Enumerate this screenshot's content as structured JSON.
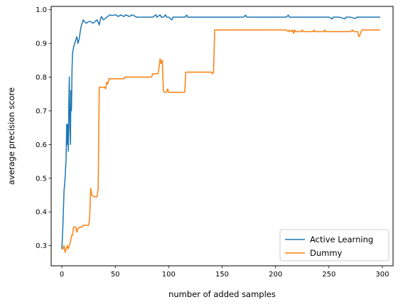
{
  "chart_data": {
    "type": "line",
    "title": "",
    "xlabel": "number of added samples",
    "ylabel": "average precision score",
    "xlim": [
      -10,
      310
    ],
    "ylim": [
      0.24,
      1.01
    ],
    "xticks": [
      0,
      50,
      100,
      150,
      200,
      250,
      300
    ],
    "yticks": [
      0.3,
      0.4,
      0.5,
      0.6,
      0.7,
      0.8,
      0.9,
      1.0
    ],
    "xtick_labels": [
      "0",
      "50",
      "100",
      "150",
      "200",
      "250",
      "300"
    ],
    "ytick_labels": [
      "0.3",
      "0.4",
      "0.5",
      "0.6",
      "0.7",
      "0.8",
      "0.9",
      "1.0"
    ],
    "grid": false,
    "legend_position": "lower-right",
    "series": [
      {
        "name": "Active Learning",
        "color": "#1f77b4",
        "points": [
          [
            0,
            0.29
          ],
          [
            1,
            0.36
          ],
          [
            2,
            0.46
          ],
          [
            3,
            0.5
          ],
          [
            4,
            0.56
          ],
          [
            4.5,
            0.66
          ],
          [
            5,
            0.6
          ],
          [
            5.5,
            0.66
          ],
          [
            6,
            0.58
          ],
          [
            6.5,
            0.72
          ],
          [
            7,
            0.8
          ],
          [
            7.5,
            0.65
          ],
          [
            8,
            0.6
          ],
          [
            8.5,
            0.76
          ],
          [
            9,
            0.7
          ],
          [
            9.5,
            0.82
          ],
          [
            10,
            0.87
          ],
          [
            11,
            0.89
          ],
          [
            12,
            0.9
          ],
          [
            13,
            0.91
          ],
          [
            14,
            0.92
          ],
          [
            15,
            0.9
          ],
          [
            16,
            0.91
          ],
          [
            17,
            0.93
          ],
          [
            18,
            0.95
          ],
          [
            19,
            0.96
          ],
          [
            20,
            0.97
          ],
          [
            21,
            0.965
          ],
          [
            23,
            0.96
          ],
          [
            25,
            0.965
          ],
          [
            27,
            0.965
          ],
          [
            29,
            0.96
          ],
          [
            31,
            0.965
          ],
          [
            33,
            0.97
          ],
          [
            35,
            0.955
          ],
          [
            36,
            0.97
          ],
          [
            37,
            0.98
          ],
          [
            39,
            0.97
          ],
          [
            41,
            0.975
          ],
          [
            43,
            0.98
          ],
          [
            45,
            0.985
          ],
          [
            47,
            0.983
          ],
          [
            50,
            0.985
          ],
          [
            53,
            0.98
          ],
          [
            55,
            0.985
          ],
          [
            58,
            0.98
          ],
          [
            60,
            0.985
          ],
          [
            63,
            0.98
          ],
          [
            66,
            0.985
          ],
          [
            70,
            0.978
          ],
          [
            75,
            0.978
          ],
          [
            80,
            0.978
          ],
          [
            85,
            0.978
          ],
          [
            88,
            0.985
          ],
          [
            89,
            0.978
          ],
          [
            92,
            0.985
          ],
          [
            93,
            0.978
          ],
          [
            95,
            0.978
          ],
          [
            97,
            0.985
          ],
          [
            98,
            0.978
          ],
          [
            100,
            0.978
          ],
          [
            103,
            0.97
          ],
          [
            104,
            0.978
          ],
          [
            110,
            0.978
          ],
          [
            115,
            0.978
          ],
          [
            117,
            0.984
          ],
          [
            118,
            0.978
          ],
          [
            125,
            0.978
          ],
          [
            130,
            0.978
          ],
          [
            140,
            0.978
          ],
          [
            150,
            0.978
          ],
          [
            160,
            0.978
          ],
          [
            170,
            0.978
          ],
          [
            172,
            0.984
          ],
          [
            173,
            0.978
          ],
          [
            180,
            0.978
          ],
          [
            190,
            0.978
          ],
          [
            200,
            0.978
          ],
          [
            210,
            0.978
          ],
          [
            212,
            0.984
          ],
          [
            213,
            0.978
          ],
          [
            220,
            0.978
          ],
          [
            230,
            0.978
          ],
          [
            240,
            0.978
          ],
          [
            250,
            0.978
          ],
          [
            253,
            0.973
          ],
          [
            254,
            0.978
          ],
          [
            260,
            0.978
          ],
          [
            265,
            0.973
          ],
          [
            266,
            0.978
          ],
          [
            270,
            0.978
          ],
          [
            275,
            0.974
          ],
          [
            276,
            0.978
          ],
          [
            280,
            0.978
          ],
          [
            290,
            0.978
          ],
          [
            298,
            0.978
          ]
        ]
      },
      {
        "name": "Dummy",
        "color": "#ff7f0e",
        "points": [
          [
            0,
            0.29
          ],
          [
            1,
            0.29
          ],
          [
            2,
            0.3
          ],
          [
            3,
            0.28
          ],
          [
            4,
            0.29
          ],
          [
            5,
            0.3
          ],
          [
            6,
            0.29
          ],
          [
            7,
            0.3
          ],
          [
            8,
            0.31
          ],
          [
            9,
            0.33
          ],
          [
            10,
            0.33
          ],
          [
            11,
            0.355
          ],
          [
            13,
            0.355
          ],
          [
            14,
            0.34
          ],
          [
            15,
            0.35
          ],
          [
            17,
            0.355
          ],
          [
            19,
            0.355
          ],
          [
            20,
            0.36
          ],
          [
            22,
            0.36
          ],
          [
            25,
            0.36
          ],
          [
            26,
            0.38
          ],
          [
            27,
            0.47
          ],
          [
            28,
            0.45
          ],
          [
            30,
            0.445
          ],
          [
            32,
            0.445
          ],
          [
            33,
            0.445
          ],
          [
            34,
            0.47
          ],
          [
            35,
            0.77
          ],
          [
            38,
            0.77
          ],
          [
            40,
            0.77
          ],
          [
            41,
            0.765
          ],
          [
            42,
            0.785
          ],
          [
            43,
            0.78
          ],
          [
            44,
            0.795
          ],
          [
            50,
            0.795
          ],
          [
            55,
            0.795
          ],
          [
            58,
            0.795
          ],
          [
            59,
            0.8
          ],
          [
            70,
            0.8
          ],
          [
            80,
            0.8
          ],
          [
            84,
            0.8
          ],
          [
            85,
            0.81
          ],
          [
            88,
            0.81
          ],
          [
            90,
            0.81
          ],
          [
            91,
            0.83
          ],
          [
            92,
            0.855
          ],
          [
            93,
            0.84
          ],
          [
            94,
            0.85
          ],
          [
            95,
            0.76
          ],
          [
            96,
            0.755
          ],
          [
            98,
            0.755
          ],
          [
            99,
            0.765
          ],
          [
            100,
            0.755
          ],
          [
            105,
            0.755
          ],
          [
            110,
            0.755
          ],
          [
            115,
            0.755
          ],
          [
            116,
            0.815
          ],
          [
            120,
            0.815
          ],
          [
            125,
            0.815
          ],
          [
            130,
            0.815
          ],
          [
            135,
            0.815
          ],
          [
            140,
            0.815
          ],
          [
            141,
            0.81
          ],
          [
            142,
            0.815
          ],
          [
            143,
            0.94
          ],
          [
            150,
            0.94
          ],
          [
            160,
            0.94
          ],
          [
            170,
            0.94
          ],
          [
            180,
            0.94
          ],
          [
            190,
            0.94
          ],
          [
            200,
            0.94
          ],
          [
            210,
            0.94
          ],
          [
            212,
            0.935
          ],
          [
            213,
            0.94
          ],
          [
            215,
            0.935
          ],
          [
            216,
            0.94
          ],
          [
            217,
            0.93
          ],
          [
            218,
            0.94
          ],
          [
            219,
            0.935
          ],
          [
            220,
            0.935
          ],
          [
            224,
            0.935
          ],
          [
            225,
            0.94
          ],
          [
            226,
            0.935
          ],
          [
            230,
            0.935
          ],
          [
            235,
            0.935
          ],
          [
            236,
            0.94
          ],
          [
            237,
            0.935
          ],
          [
            240,
            0.935
          ],
          [
            245,
            0.935
          ],
          [
            246,
            0.94
          ],
          [
            247,
            0.935
          ],
          [
            250,
            0.935
          ],
          [
            255,
            0.935
          ],
          [
            260,
            0.935
          ],
          [
            265,
            0.935
          ],
          [
            270,
            0.935
          ],
          [
            272,
            0.94
          ],
          [
            273,
            0.935
          ],
          [
            277,
            0.935
          ],
          [
            278,
            0.92
          ],
          [
            279,
            0.925
          ],
          [
            280,
            0.935
          ],
          [
            281,
            0.94
          ],
          [
            285,
            0.94
          ],
          [
            290,
            0.94
          ],
          [
            298,
            0.94
          ]
        ]
      }
    ]
  }
}
